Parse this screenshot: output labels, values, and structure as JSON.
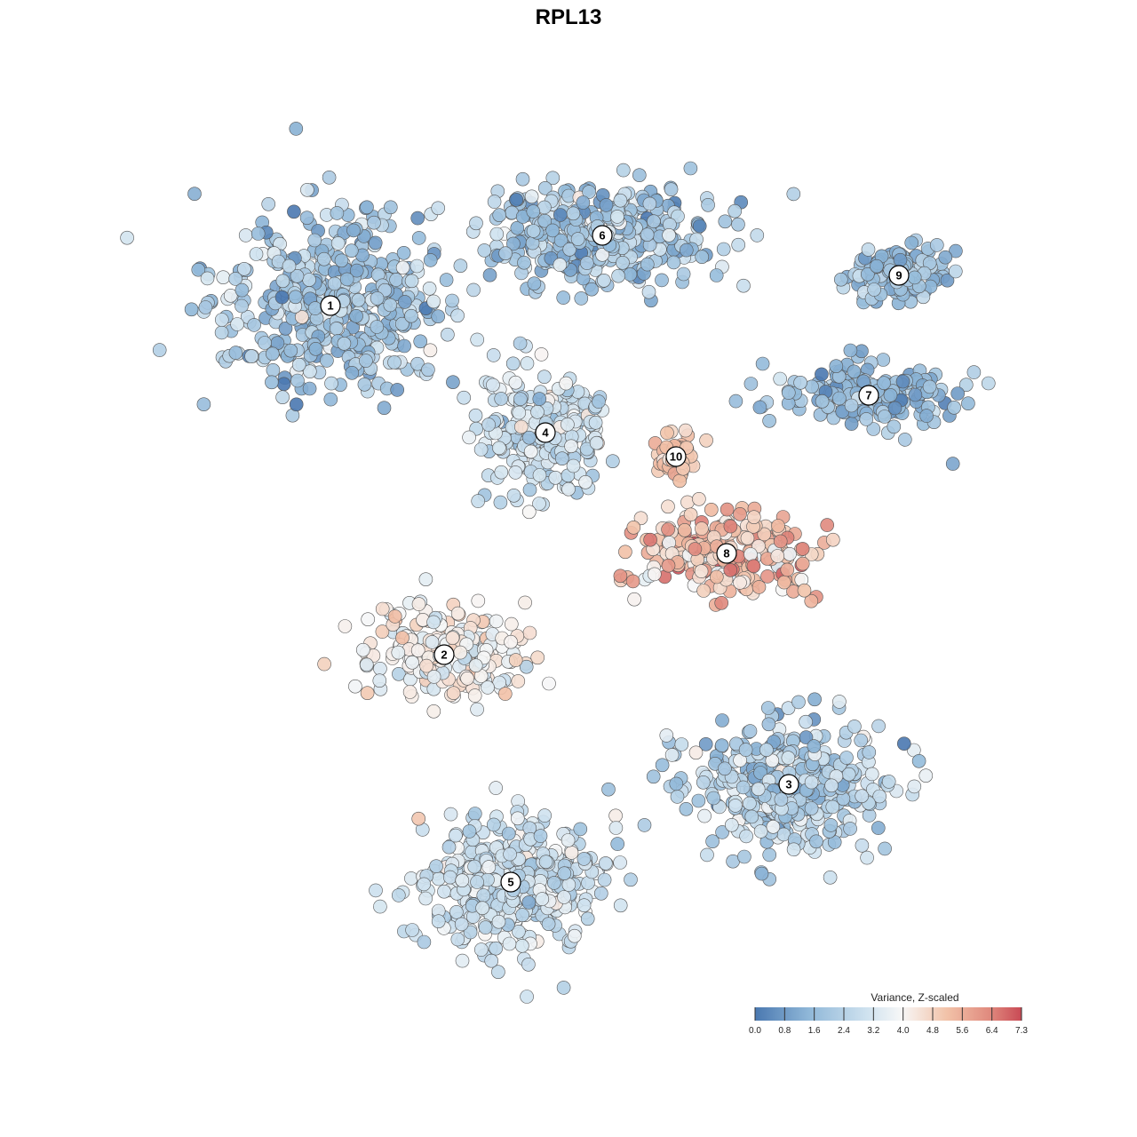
{
  "chart_data": {
    "type": "scatter",
    "title": "RPL13",
    "xlabel": "",
    "ylabel": "",
    "grid": false,
    "legend": {
      "title": "Variance, Z-scaled",
      "placement": "bottom-right",
      "range": [
        0.0,
        7.3
      ],
      "ticks": [
        "0.0",
        "0.8",
        "1.6",
        "2.4",
        "3.2",
        "4.0",
        "4.8",
        "5.6",
        "6.4",
        "7.3"
      ]
    },
    "colors": {
      "low": "#4a78b0",
      "mid": "#f7f7f7",
      "high": "#c94a55",
      "point_stroke": "#555555"
    },
    "clusters": [
      {
        "id": "1",
        "center": [
          372,
          344
        ],
        "extent": [
          150,
          110
        ],
        "count": 460,
        "mean_value": 2.0,
        "sd": 0.8
      },
      {
        "id": "2",
        "center": [
          500,
          737
        ],
        "extent": [
          100,
          60
        ],
        "count": 220,
        "mean_value": 4.0,
        "sd": 0.6
      },
      {
        "id": "3",
        "center": [
          888,
          883
        ],
        "extent": [
          120,
          80
        ],
        "count": 380,
        "mean_value": 2.2,
        "sd": 0.8
      },
      {
        "id": "4",
        "center": [
          614,
          487
        ],
        "extent": [
          80,
          80
        ],
        "count": 260,
        "mean_value": 3.0,
        "sd": 0.6
      },
      {
        "id": "5",
        "center": [
          575,
          993
        ],
        "extent": [
          110,
          80
        ],
        "count": 400,
        "mean_value": 3.0,
        "sd": 0.6
      },
      {
        "id": "6",
        "center": [
          678,
          265
        ],
        "extent": [
          150,
          60
        ],
        "count": 360,
        "mean_value": 2.0,
        "sd": 0.8
      },
      {
        "id": "7",
        "center": [
          978,
          445
        ],
        "extent": [
          110,
          40
        ],
        "count": 200,
        "mean_value": 1.6,
        "sd": 0.6
      },
      {
        "id": "8",
        "center": [
          818,
          623
        ],
        "extent": [
          110,
          50
        ],
        "count": 240,
        "mean_value": 5.2,
        "sd": 0.9
      },
      {
        "id": "9",
        "center": [
          1012,
          310
        ],
        "extent": [
          60,
          35
        ],
        "count": 130,
        "mean_value": 1.8,
        "sd": 0.6
      },
      {
        "id": "10",
        "center": [
          761,
          514
        ],
        "extent": [
          25,
          30
        ],
        "count": 50,
        "mean_value": 5.0,
        "sd": 0.4
      }
    ]
  }
}
